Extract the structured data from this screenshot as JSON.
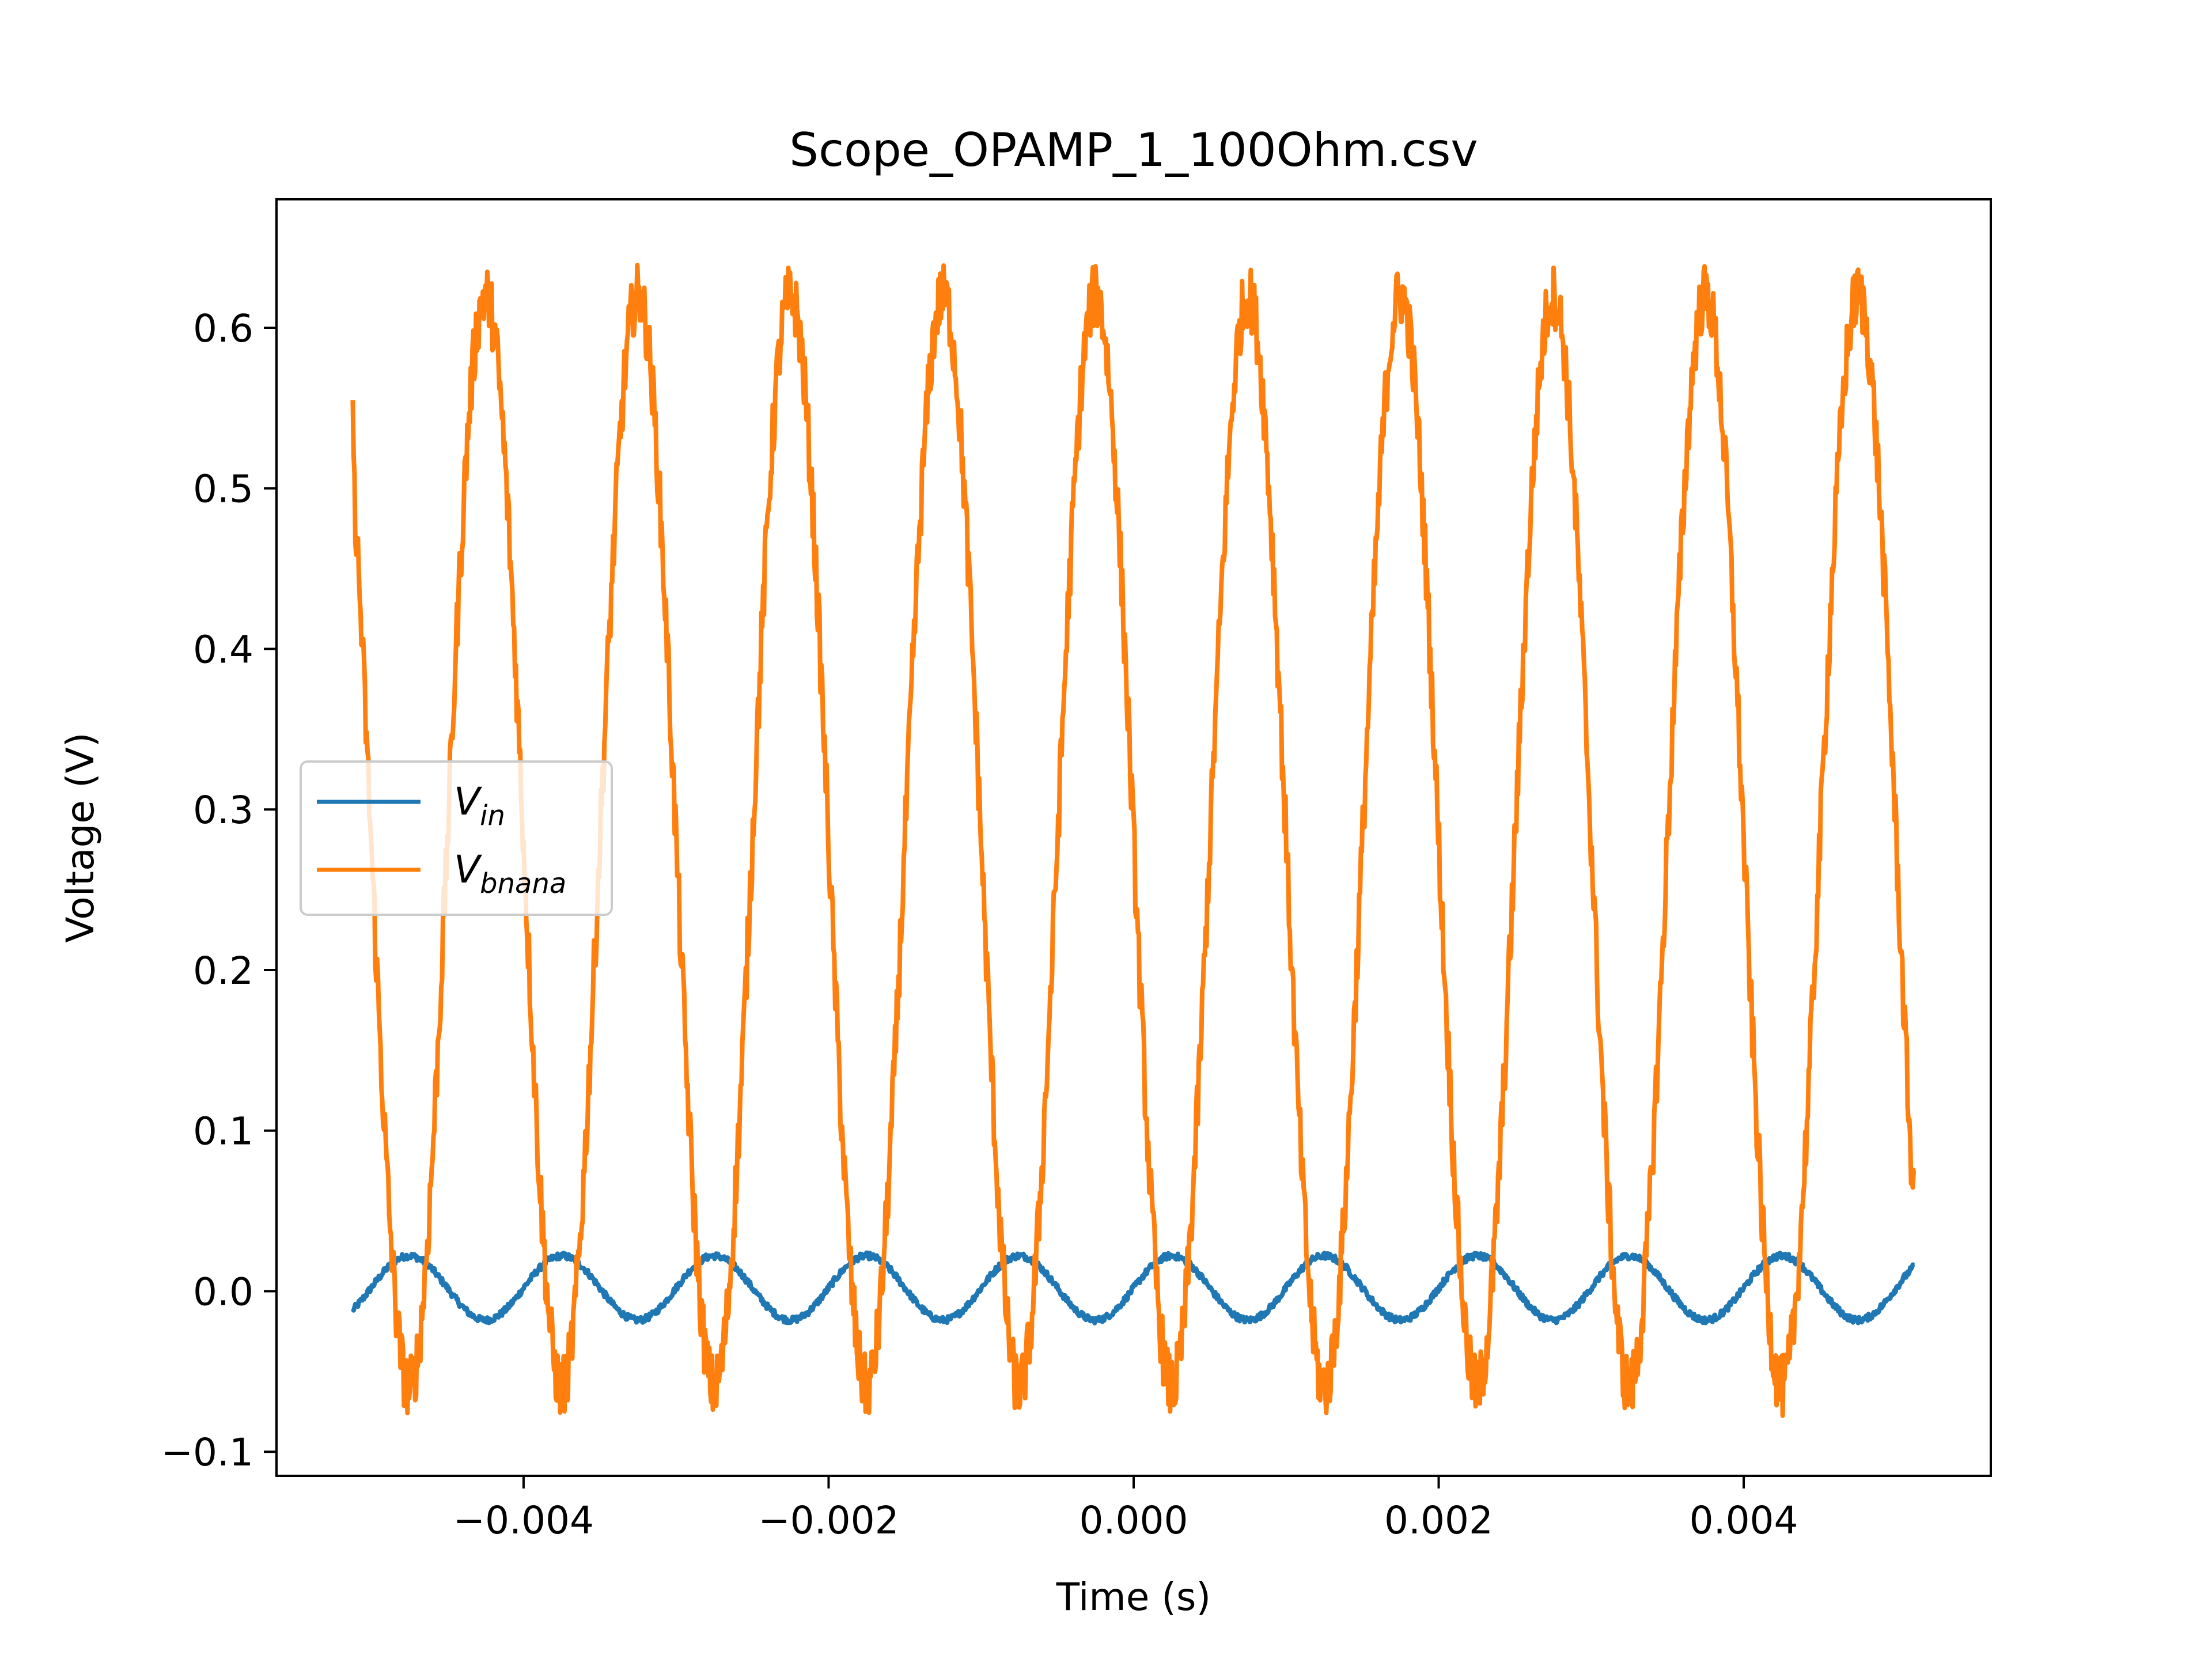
{
  "chart_data": {
    "type": "line",
    "title": "Scope_OPAMP_1_100Ohm.csv",
    "xlabel": "Time (s)",
    "ylabel": "Voltage (V)",
    "xlim": [
      -0.00562,
      0.00562
    ],
    "ylim": [
      -0.115,
      0.68
    ],
    "xticks": [
      -0.004,
      -0.002,
      0.0,
      0.002,
      0.004
    ],
    "xtick_labels": [
      "−0.004",
      "−0.002",
      "0.000",
      "0.002",
      "0.004"
    ],
    "yticks": [
      -0.1,
      0.0,
      0.1,
      0.2,
      0.3,
      0.4,
      0.5,
      0.6
    ],
    "ytick_labels": [
      "−0.1",
      "0.0",
      "0.1",
      "0.2",
      "0.3",
      "0.4",
      "0.5",
      "0.6"
    ],
    "grid": false,
    "legend_position": "center-left",
    "series": [
      {
        "name": "V_in",
        "color": "#1f77b4",
        "waveform": "sine",
        "x_start": -0.00512,
        "x_end": 0.00512,
        "frequency_hz": 1000,
        "amplitude": 0.02,
        "offset": 0.002,
        "peak_times": [
          -0.00475,
          -0.00375,
          -0.00275,
          -0.00175,
          -0.00075,
          0.00025,
          0.00125,
          0.00225,
          0.00325,
          0.00425
        ],
        "noise": 0.002
      },
      {
        "name": "V_bnana",
        "color": "#ff7f0e",
        "waveform": "sine",
        "x_start": -0.00512,
        "x_end": 0.00512,
        "frequency_hz": 1000,
        "amplitude": 0.34,
        "offset": 0.28,
        "peak_times": [
          -0.00425,
          -0.00325,
          -0.00225,
          -0.00125,
          -0.00025,
          0.00075,
          0.00175,
          0.00275,
          0.00375,
          0.00475
        ],
        "trough_times": [
          -0.00475,
          -0.00375,
          -0.00275,
          -0.00175,
          -0.00075,
          0.00025,
          0.00125,
          0.00225,
          0.00325,
          0.00425
        ],
        "start_value": 0.555,
        "end_value": 0.075,
        "noise": 0.02
      }
    ],
    "legend": [
      {
        "label_main": "V",
        "label_sub": "in",
        "color": "#1f77b4"
      },
      {
        "label_main": "V",
        "label_sub": "bnana",
        "color": "#ff7f0e"
      }
    ]
  }
}
